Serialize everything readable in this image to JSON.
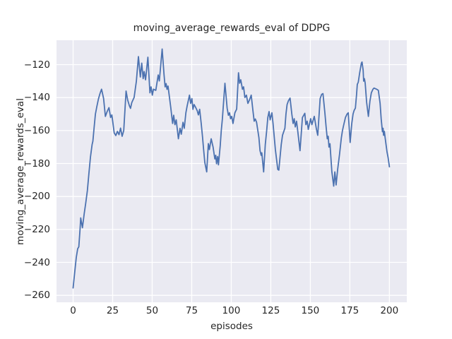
{
  "colors": {
    "figure_background": "#ffffff",
    "axes_background": "#eaeaf2",
    "grid": "#ffffff",
    "line": "#4c72b0",
    "text": "#262626"
  },
  "chart_data": {
    "type": "line",
    "title": "moving_average_rewards_eval of DDPG",
    "xlabel": "episodes",
    "ylabel": "moving_average_rewards_eval",
    "xlim": [
      -10.5,
      211
    ],
    "ylim": [
      -264.2,
      -105.2
    ],
    "xticks": [
      0,
      25,
      50,
      75,
      100,
      125,
      150,
      175,
      200
    ],
    "xtick_labels": [
      "0",
      "25",
      "50",
      "75",
      "100",
      "125",
      "150",
      "175",
      "200"
    ],
    "yticks": [
      -260,
      -240,
      -220,
      -200,
      -180,
      -160,
      -140,
      -120
    ],
    "ytick_labels": [
      "−260",
      "−240",
      "−220",
      "−200",
      "−180",
      "−160",
      "−140",
      "−120"
    ],
    "grid": true,
    "legend": null,
    "series": [
      {
        "name": "moving_average_rewards_eval",
        "color": "#4c72b0",
        "points": [
          [
            0,
            -255.5
          ],
          [
            1,
            -246
          ],
          [
            2,
            -237
          ],
          [
            2.9,
            -231.7
          ],
          [
            3.6,
            -230.5
          ],
          [
            4.4,
            -219.5
          ],
          [
            4.8,
            -213
          ],
          [
            5.9,
            -219
          ],
          [
            7,
            -210.5
          ],
          [
            8,
            -204
          ],
          [
            9,
            -196.5
          ],
          [
            10,
            -186
          ],
          [
            11,
            -176
          ],
          [
            12,
            -168.5
          ],
          [
            12.5,
            -166.5
          ],
          [
            13.3,
            -158
          ],
          [
            14.1,
            -150
          ],
          [
            15,
            -145.5
          ],
          [
            16,
            -141
          ],
          [
            17,
            -137.5
          ],
          [
            18,
            -134.9
          ],
          [
            19.3,
            -140.6
          ],
          [
            20.4,
            -151.4
          ],
          [
            21.5,
            -148.5
          ],
          [
            22.7,
            -146.1
          ],
          [
            23.7,
            -152.1
          ],
          [
            24.5,
            -150.5
          ],
          [
            26,
            -161.4
          ],
          [
            27,
            -163
          ],
          [
            28,
            -160.5
          ],
          [
            29,
            -162.5
          ],
          [
            30,
            -158.5
          ],
          [
            31,
            -163.5
          ],
          [
            32,
            -160
          ],
          [
            33.5,
            -136
          ],
          [
            34.5,
            -141.5
          ],
          [
            35.6,
            -144.9
          ],
          [
            36.3,
            -146.5
          ],
          [
            37.1,
            -143
          ],
          [
            38.6,
            -139.9
          ],
          [
            40,
            -130
          ],
          [
            41.3,
            -115.1
          ],
          [
            42.5,
            -127.5
          ],
          [
            43.4,
            -119.1
          ],
          [
            44.3,
            -128.5
          ],
          [
            44.9,
            -124.2
          ],
          [
            45.8,
            -129.2
          ],
          [
            47.3,
            -115.5
          ],
          [
            48.6,
            -137.1
          ],
          [
            49.3,
            -133.5
          ],
          [
            50.1,
            -138.5
          ],
          [
            50.8,
            -134.9
          ],
          [
            52.3,
            -135.6
          ],
          [
            53.8,
            -126.3
          ],
          [
            54.5,
            -129.9
          ],
          [
            56.3,
            -110.5
          ],
          [
            57.5,
            -126.3
          ],
          [
            58.2,
            -133.5
          ],
          [
            58.8,
            -131.5
          ],
          [
            59.4,
            -135
          ],
          [
            60,
            -133
          ],
          [
            61.7,
            -145.7
          ],
          [
            62.9,
            -155.7
          ],
          [
            63.6,
            -150.7
          ],
          [
            64.4,
            -156.4
          ],
          [
            65.2,
            -153.5
          ],
          [
            66.6,
            -165
          ],
          [
            67.6,
            -158.6
          ],
          [
            68.4,
            -162.2
          ],
          [
            69.5,
            -155
          ],
          [
            70.3,
            -158.6
          ],
          [
            71.3,
            -149.2
          ],
          [
            72.1,
            -145
          ],
          [
            73.6,
            -138.5
          ],
          [
            74.3,
            -143.5
          ],
          [
            75.1,
            -140.6
          ],
          [
            75.8,
            -147.1
          ],
          [
            76.5,
            -144.2
          ],
          [
            77.5,
            -146
          ],
          [
            78.5,
            -148
          ],
          [
            79.2,
            -150.5
          ],
          [
            80,
            -147.1
          ],
          [
            81,
            -155.7
          ],
          [
            81.8,
            -163.6
          ],
          [
            82.5,
            -171.5
          ],
          [
            83.3,
            -179.4
          ],
          [
            84.5,
            -185.1
          ],
          [
            85.5,
            -167.9
          ],
          [
            86.2,
            -171.5
          ],
          [
            87.3,
            -165
          ],
          [
            88.5,
            -170
          ],
          [
            89.6,
            -177.2
          ],
          [
            90.2,
            -175
          ],
          [
            90.7,
            -180.1
          ],
          [
            91.4,
            -175.8
          ],
          [
            91.9,
            -180.8
          ],
          [
            93,
            -169.3
          ],
          [
            93.7,
            -160
          ],
          [
            94.4,
            -152.8
          ],
          [
            96,
            -131.3
          ],
          [
            97.4,
            -146.4
          ],
          [
            98.2,
            -150.7
          ],
          [
            98.9,
            -149.2
          ],
          [
            99.6,
            -152.8
          ],
          [
            100.3,
            -151.4
          ],
          [
            101.1,
            -155.7
          ],
          [
            102.3,
            -149.2
          ],
          [
            103.4,
            -147
          ],
          [
            104.6,
            -124.9
          ],
          [
            105.3,
            -131.3
          ],
          [
            106,
            -129.2
          ],
          [
            107.1,
            -134.9
          ],
          [
            107.8,
            -133.5
          ],
          [
            108.6,
            -139.9
          ],
          [
            109.6,
            -138.5
          ],
          [
            110.5,
            -143.5
          ],
          [
            111.5,
            -141.4
          ],
          [
            112.6,
            -138.5
          ],
          [
            113.7,
            -147.8
          ],
          [
            114.5,
            -154.3
          ],
          [
            115.2,
            -153
          ],
          [
            116,
            -155
          ],
          [
            117.5,
            -164.3
          ],
          [
            118.2,
            -172.2
          ],
          [
            118.9,
            -175
          ],
          [
            119.3,
            -173.5
          ],
          [
            120.5,
            -185.1
          ],
          [
            121.5,
            -168.6
          ],
          [
            122.4,
            -160
          ],
          [
            123.1,
            -152.1
          ],
          [
            123.9,
            -148.5
          ],
          [
            124.6,
            -153.5
          ],
          [
            125.7,
            -149.2
          ],
          [
            126.4,
            -155.7
          ],
          [
            127.1,
            -162.9
          ],
          [
            127.9,
            -171.5
          ],
          [
            129.4,
            -183.6
          ],
          [
            130.1,
            -184
          ],
          [
            130.9,
            -175.8
          ],
          [
            131.6,
            -168.6
          ],
          [
            132.4,
            -162.9
          ],
          [
            133.9,
            -158.6
          ],
          [
            134.6,
            -150
          ],
          [
            135.3,
            -144.2
          ],
          [
            136.1,
            -142
          ],
          [
            137.2,
            -140.3
          ],
          [
            138.3,
            -150
          ],
          [
            139.1,
            -155.7
          ],
          [
            139.8,
            -152.8
          ],
          [
            140.5,
            -157.8
          ],
          [
            141.3,
            -154.3
          ],
          [
            142,
            -160
          ],
          [
            143.5,
            -172.2
          ],
          [
            145,
            -152.1
          ],
          [
            146.5,
            -149.5
          ],
          [
            147.2,
            -156.4
          ],
          [
            148,
            -154.3
          ],
          [
            148.7,
            -159.3
          ],
          [
            150.2,
            -152.8
          ],
          [
            151,
            -156.4
          ],
          [
            152.5,
            -151.4
          ],
          [
            153.9,
            -159.3
          ],
          [
            154.7,
            -162.9
          ],
          [
            156.2,
            -140.6
          ],
          [
            157.2,
            -138
          ],
          [
            158,
            -137.6
          ],
          [
            159.2,
            -149.2
          ],
          [
            159.9,
            -157.1
          ],
          [
            160.7,
            -165
          ],
          [
            161.3,
            -163.5
          ],
          [
            161.8,
            -170
          ],
          [
            162.4,
            -168
          ],
          [
            163.6,
            -185.1
          ],
          [
            164.8,
            -193.7
          ],
          [
            165.5,
            -185.1
          ],
          [
            166.3,
            -193
          ],
          [
            167.3,
            -183.6
          ],
          [
            168.5,
            -174.3
          ],
          [
            169.6,
            -164.5
          ],
          [
            170.3,
            -160
          ],
          [
            171,
            -157.1
          ],
          [
            172.2,
            -152.1
          ],
          [
            173.2,
            -150
          ],
          [
            174,
            -149.2
          ],
          [
            175.2,
            -167.2
          ],
          [
            176.2,
            -155.7
          ],
          [
            177,
            -150
          ],
          [
            177.7,
            -147.8
          ],
          [
            178.5,
            -146.4
          ],
          [
            179.2,
            -138.5
          ],
          [
            179.7,
            -132
          ],
          [
            180.3,
            -130.6
          ],
          [
            181.2,
            -124.9
          ],
          [
            182.3,
            -119.1
          ],
          [
            182.7,
            -118.4
          ],
          [
            183.4,
            -123.4
          ],
          [
            183.7,
            -130
          ],
          [
            184.2,
            -128.5
          ],
          [
            184.7,
            -131.3
          ],
          [
            185.6,
            -142.8
          ],
          [
            186.7,
            -151.4
          ],
          [
            187.7,
            -142.1
          ],
          [
            188.6,
            -137.1
          ],
          [
            189.6,
            -134.9
          ],
          [
            190.3,
            -134.2
          ],
          [
            191.9,
            -134.9
          ],
          [
            193,
            -135.6
          ],
          [
            194.1,
            -143.5
          ],
          [
            194.8,
            -152.8
          ],
          [
            195.6,
            -160.7
          ],
          [
            196,
            -158.6
          ],
          [
            196.3,
            -162.9
          ],
          [
            196.8,
            -160.5
          ],
          [
            197.3,
            -164.3
          ],
          [
            198.5,
            -173
          ],
          [
            199.2,
            -176.6
          ],
          [
            200,
            -182
          ]
        ]
      }
    ]
  }
}
